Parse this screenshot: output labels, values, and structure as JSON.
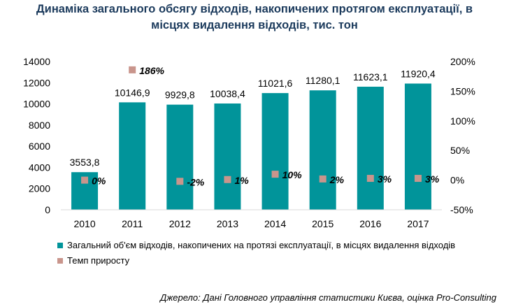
{
  "title_line1": "Динаміка загального обсягу відходів, накопичених протягом експлуатації, в",
  "title_line2": "місцях видалення відходів, тис. тон",
  "colors": {
    "bar": "#01949a",
    "point": "#c9958c"
  },
  "legend": {
    "bars": "Загальний об'єм відходів, накопичених на протязі експлуатації, в місцях видалення відходів",
    "points": "Темп приросту"
  },
  "source": "Джерело: Дані Головного управління статистики Києва, оцінка Pro-Consulting",
  "chart_data": {
    "type": "bar",
    "categories": [
      "2010",
      "2011",
      "2012",
      "2013",
      "2014",
      "2015",
      "2016",
      "2017"
    ],
    "series": [
      {
        "name": "Загальний об'єм відходів, накопичених на протязі експлуатації, в місцях видалення відходів",
        "type": "bar",
        "axis": "left",
        "values": [
          3553.8,
          10146.9,
          9929.8,
          10038.4,
          11021.6,
          11280.1,
          11623.1,
          11920.4
        ],
        "labels": [
          "3553,8",
          "10146,9",
          "9929,8",
          "10038,4",
          "11021,6",
          "11280,1",
          "11623,1",
          "11920,4"
        ]
      },
      {
        "name": "Темп приросту",
        "type": "scatter",
        "axis": "right",
        "values": [
          0,
          186,
          -2,
          1,
          10,
          2,
          3,
          3
        ],
        "labels": [
          "0%",
          "186%",
          "-2%",
          "1%",
          "10%",
          "2%",
          "3%",
          "3%"
        ]
      }
    ],
    "y_left": {
      "min": 0,
      "max": 14000,
      "ticks": [
        "0",
        "2000",
        "4000",
        "6000",
        "8000",
        "10000",
        "12000",
        "14000"
      ]
    },
    "y_right": {
      "min": -50,
      "max": 200,
      "ticks": [
        "-50%",
        "0%",
        "50%",
        "100%",
        "150%",
        "200%"
      ]
    },
    "grid": false,
    "legend_position": "bottom"
  }
}
